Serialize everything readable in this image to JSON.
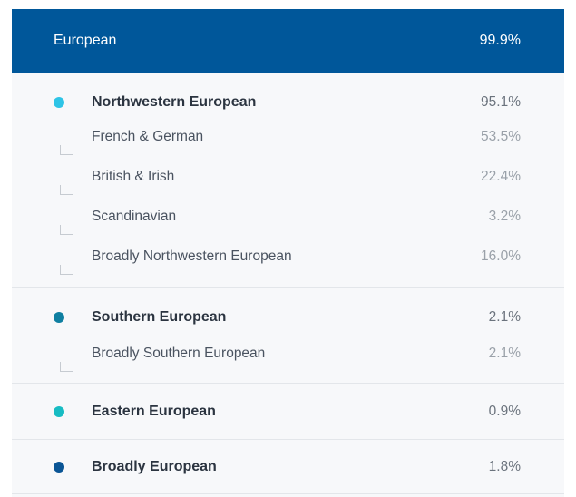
{
  "header": {
    "label": "European",
    "value": "99.9%"
  },
  "colors": {
    "header_bg": "#00579a",
    "northwestern": "#2ec4e6",
    "southern": "#0f7fa1",
    "eastern": "#17bcc3",
    "broadly": "#0a5595"
  },
  "groups": [
    {
      "label": "Northwestern European",
      "value": "95.1%",
      "subs": [
        {
          "label": "French & German",
          "value": "53.5%"
        },
        {
          "label": "British & Irish",
          "value": "22.4%"
        },
        {
          "label": "Scandinavian",
          "value": "3.2%"
        },
        {
          "label": "Broadly Northwestern European",
          "value": "16.0%"
        }
      ]
    },
    {
      "label": "Southern European",
      "value": "2.1%",
      "subs": [
        {
          "label": "Broadly Southern European",
          "value": "2.1%"
        }
      ]
    },
    {
      "label": "Eastern European",
      "value": "0.9%",
      "subs": []
    },
    {
      "label": "Broadly European",
      "value": "1.8%",
      "subs": []
    }
  ]
}
